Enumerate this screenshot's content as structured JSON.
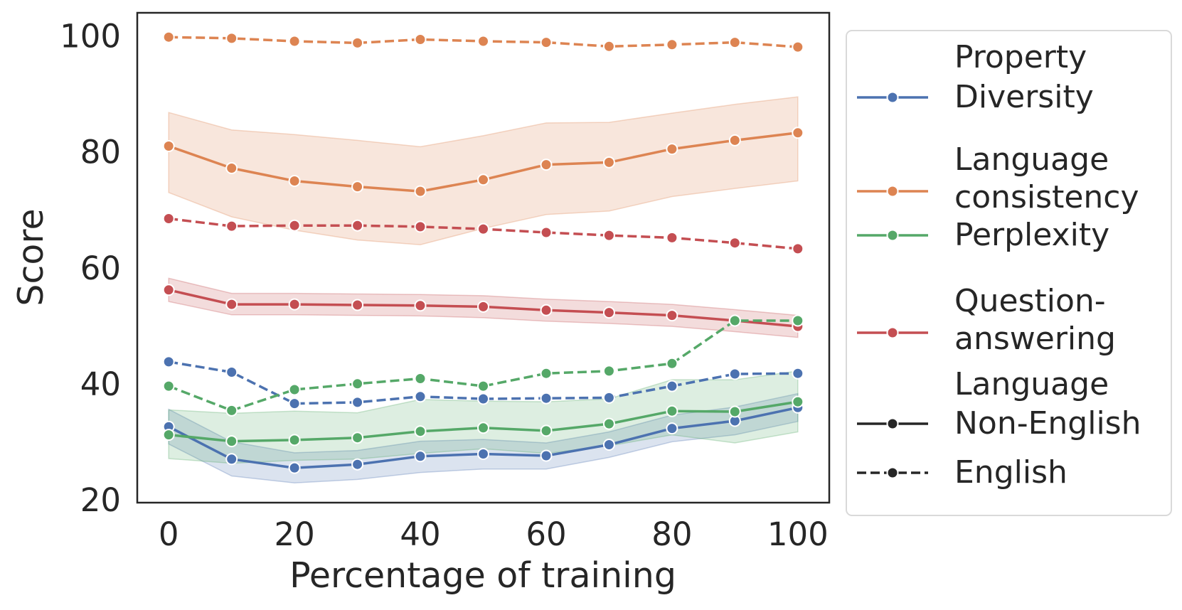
{
  "chart_data": {
    "type": "line",
    "title": "",
    "xlabel": "Percentage of training",
    "ylabel": "Score",
    "xlim": [
      -5,
      105
    ],
    "ylim": [
      19.5,
      104
    ],
    "xticks": [
      0,
      20,
      40,
      60,
      80,
      100
    ],
    "yticks": [
      20,
      40,
      60,
      80,
      100
    ],
    "x": [
      0,
      10,
      20,
      30,
      40,
      50,
      60,
      70,
      80,
      90,
      100
    ],
    "colors": {
      "Diversity": "#4c72b0",
      "Language consistency": "#dd8452",
      "Perplexity": "#55a868",
      "Question-answering": "#c44e52"
    },
    "series": [
      {
        "property": "Language consistency",
        "language": "English",
        "values": [
          99.8,
          99.6,
          99.1,
          98.8,
          99.4,
          99.1,
          98.9,
          98.2,
          98.5,
          98.9,
          98.1
        ]
      },
      {
        "property": "Language consistency",
        "language": "Non-English",
        "values": [
          81.0,
          77.2,
          75.0,
          74.0,
          73.2,
          75.2,
          77.8,
          78.2,
          80.5,
          82.0,
          83.3
        ],
        "ci_low": [
          73.0,
          68.8,
          66.5,
          64.8,
          64.0,
          66.8,
          69.2,
          69.8,
          72.3,
          73.7,
          75.0
        ],
        "ci_high": [
          86.8,
          83.8,
          83.0,
          82.0,
          80.9,
          82.8,
          85.0,
          85.1,
          86.7,
          88.2,
          89.5
        ]
      },
      {
        "property": "Question-answering",
        "language": "English",
        "values": [
          68.5,
          67.2,
          67.3,
          67.3,
          67.1,
          66.7,
          66.1,
          65.6,
          65.2,
          64.3,
          63.3
        ]
      },
      {
        "property": "Question-answering",
        "language": "Non-English",
        "values": [
          56.2,
          53.7,
          53.7,
          53.6,
          53.5,
          53.3,
          52.7,
          52.3,
          51.8,
          50.9,
          49.9
        ],
        "ci_low": [
          54.2,
          51.9,
          51.9,
          51.8,
          51.7,
          51.4,
          50.8,
          50.4,
          49.9,
          49.0,
          48.0
        ],
        "ci_high": [
          58.2,
          55.6,
          55.6,
          55.5,
          55.4,
          55.2,
          54.6,
          54.2,
          53.7,
          52.8,
          51.8
        ]
      },
      {
        "property": "Diversity",
        "language": "English",
        "values": [
          43.8,
          42.0,
          36.6,
          36.8,
          37.8,
          37.4,
          37.5,
          37.6,
          39.6,
          41.7,
          41.8
        ]
      },
      {
        "property": "Perplexity",
        "language": "English",
        "values": [
          39.6,
          35.4,
          39.0,
          40.0,
          40.9,
          39.6,
          41.8,
          42.2,
          43.5,
          50.9,
          50.9
        ]
      },
      {
        "property": "Diversity",
        "language": "Non-English",
        "values": [
          32.6,
          27.0,
          25.5,
          26.1,
          27.5,
          27.9,
          27.6,
          29.5,
          32.3,
          33.6,
          35.9
        ],
        "ci_low": [
          29.6,
          24.1,
          22.9,
          23.5,
          24.7,
          25.3,
          25.3,
          27.3,
          30.0,
          31.2,
          33.5
        ],
        "ci_high": [
          35.6,
          30.0,
          28.1,
          28.5,
          30.1,
          30.4,
          29.8,
          31.7,
          34.6,
          36.0,
          38.3
        ]
      },
      {
        "property": "Perplexity",
        "language": "Non-English",
        "values": [
          31.2,
          30.1,
          30.3,
          30.7,
          31.8,
          32.4,
          31.9,
          33.1,
          35.3,
          35.2,
          36.9
        ],
        "ci_low": [
          27.1,
          26.3,
          26.8,
          27.0,
          28.0,
          28.8,
          28.0,
          29.3,
          31.2,
          29.8,
          31.7
        ],
        "ci_high": [
          35.5,
          34.9,
          35.3,
          35.0,
          37.3,
          37.0,
          36.9,
          37.4,
          40.7,
          40.7,
          42.2
        ]
      }
    ],
    "legend": {
      "placement": "outside-right",
      "property_header": "Property",
      "language_header": "Language",
      "entries": [
        {
          "kind": "property",
          "label_lines": [
            "Diversity"
          ],
          "color": "#4c72b0"
        },
        {
          "kind": "property",
          "label_lines": [
            "Language",
            "consistency"
          ],
          "color": "#dd8452"
        },
        {
          "kind": "property",
          "label_lines": [
            "Perplexity"
          ],
          "color": "#55a868"
        },
        {
          "kind": "property",
          "label_lines": [
            "Question-",
            "answering"
          ],
          "color": "#c44e52"
        },
        {
          "kind": "language",
          "label_lines": [
            "Non-English"
          ],
          "color": "#262626",
          "dashed": false
        },
        {
          "kind": "language",
          "label_lines": [
            "English"
          ],
          "color": "#262626",
          "dashed": true
        }
      ]
    }
  }
}
